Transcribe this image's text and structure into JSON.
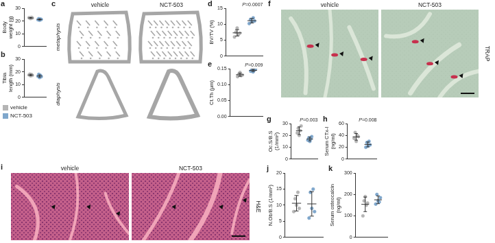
{
  "chart_data": [
    {
      "panel": "a",
      "type": "dot",
      "y_label": "Body weight (g)",
      "ylim": [
        0,
        30
      ],
      "yticks": [
        0,
        10,
        20,
        30
      ],
      "grid": false,
      "tick_labels": "y",
      "series": [
        {
          "name": "vehicle",
          "color": "#b5b5b5",
          "points": [
            22.6,
            22.2,
            21.9,
            22.8,
            22.4
          ],
          "mean": 22.4,
          "sd": 0.35
        },
        {
          "name": "NCT-503",
          "color": "#7fa7cc",
          "points": [
            21.0,
            21.8,
            20.6,
            21.5,
            21.2
          ],
          "mean": 21.2,
          "sd": 0.45
        }
      ]
    },
    {
      "panel": "b",
      "type": "dot",
      "y_label": "Tibia length (mm)",
      "ylim": [
        0,
        30
      ],
      "yticks": [
        0,
        10,
        20,
        30
      ],
      "grid": false,
      "tick_labels": "y",
      "series": [
        {
          "name": "vehicle",
          "color": "#b5b5b5",
          "points": [
            17.5,
            18.2,
            16.8,
            17.9,
            17.2
          ],
          "mean": 17.5,
          "sd": 0.55
        },
        {
          "name": "NCT-503",
          "color": "#7fa7cc",
          "points": [
            16.5,
            18.0,
            15.5,
            17.2,
            16.2
          ],
          "mean": 16.7,
          "sd": 0.95
        }
      ]
    },
    {
      "panel": "d",
      "type": "dot",
      "y_label": "BV/TV (%)",
      "ylim": [
        0,
        15
      ],
      "yticks": [
        0,
        5,
        10,
        15
      ],
      "grid": false,
      "tick_labels": "y",
      "annotation": "P=0.0007",
      "series": [
        {
          "name": "vehicle",
          "color": "#b5b5b5",
          "points": [
            6.0,
            7.5,
            8.8,
            6.8,
            7.2
          ],
          "mean": 7.3,
          "sd": 1.0
        },
        {
          "name": "NCT-503",
          "color": "#7fa7cc",
          "points": [
            10.2,
            11.5,
            10.8,
            12.0,
            11.0
          ],
          "mean": 11.1,
          "sd": 0.7
        }
      ]
    },
    {
      "panel": "e",
      "type": "dot",
      "y_label": "Ct.Th (µm)",
      "ylim": [
        0,
        0.15
      ],
      "yticks": [
        {
          "value": 0,
          "label": "0.00"
        },
        {
          "value": 0.05,
          "label": "0.05"
        },
        {
          "value": 0.1,
          "label": "0.10"
        },
        {
          "value": 0.15,
          "label": "0.15"
        }
      ],
      "grid": false,
      "tick_labels": "y",
      "annotation": "P=0.009",
      "series": [
        {
          "name": "vehicle",
          "color": "#b5b5b5",
          "points": [
            0.125,
            0.132,
            0.138,
            0.128,
            0.13
          ],
          "mean": 0.131,
          "sd": 0.005
        },
        {
          "name": "NCT-503",
          "color": "#7fa7cc",
          "points": [
            0.142,
            0.147,
            0.14,
            0.145,
            0.149
          ],
          "mean": 0.1446,
          "sd": 0.0036
        }
      ]
    },
    {
      "panel": "g",
      "type": "dot",
      "y_label": "Oc.S/B.S (1/mm²)",
      "ylim": [
        0,
        30
      ],
      "yticks": [
        0,
        10,
        20,
        30
      ],
      "grid": false,
      "tick_labels": "y",
      "annotation": "P=0.003",
      "series": [
        {
          "name": "vehicle",
          "color": "#b5b5b5",
          "points": [
            22,
            26,
            20,
            24,
            28
          ],
          "mean": 24,
          "sd": 3.2
        },
        {
          "name": "NCT-503",
          "color": "#7fa7cc",
          "points": [
            16,
            18,
            15,
            17,
            19
          ],
          "mean": 17,
          "sd": 1.6
        }
      ]
    },
    {
      "panel": "h",
      "type": "dot",
      "y_label": "Serum CTx-I (ng/ml)",
      "ylim": [
        0,
        60
      ],
      "yticks": [
        0,
        20,
        40,
        60
      ],
      "grid": false,
      "tick_labels": "y",
      "annotation": "P=0.008",
      "series": [
        {
          "name": "vehicle",
          "color": "#b5b5b5",
          "points": [
            35,
            45,
            30,
            40,
            38
          ],
          "mean": 37.6,
          "sd": 5.6
        },
        {
          "name": "NCT-503",
          "color": "#7fa7cc",
          "points": [
            20,
            28,
            22,
            30,
            24
          ],
          "mean": 24.8,
          "sd": 4.1
        }
      ]
    },
    {
      "panel": "j",
      "type": "dot",
      "y_label": "N.Ob/B.S (1/mm²)",
      "ylim": [
        0,
        20
      ],
      "yticks": [
        0,
        5,
        10,
        15,
        20
      ],
      "grid": false,
      "tick_labels": "y",
      "series": [
        {
          "name": "vehicle",
          "color": "#b5b5b5",
          "points": [
            8,
            12,
            10,
            14,
            9
          ],
          "mean": 10.6,
          "sd": 2.4
        },
        {
          "name": "NCT-503",
          "color": "#7fa7cc",
          "points": [
            6,
            14,
            9,
            15,
            8
          ],
          "mean": 10.4,
          "sd": 3.8
        }
      ]
    },
    {
      "panel": "k",
      "type": "dot",
      "y_label": "Serum osteocalcin (ng/ml)",
      "ylim": [
        0,
        300
      ],
      "yticks": [
        0,
        100,
        200,
        300
      ],
      "grid": false,
      "tick_labels": "y",
      "series": [
        {
          "name": "vehicle",
          "color": "#b5b5b5",
          "points": [
            100,
            170,
            190,
            150,
            160
          ],
          "mean": 154,
          "sd": 34
        },
        {
          "name": "NCT-503",
          "color": "#7fa7cc",
          "points": [
            155,
            200,
            170,
            165,
            185
          ],
          "mean": 175,
          "sd": 18
        }
      ]
    }
  ],
  "images": [
    {
      "panel": "c",
      "columns": [
        "vehicle",
        "NCT-503"
      ],
      "rows": [
        "metaphysis",
        "diaphysis"
      ]
    },
    {
      "panel": "f",
      "columns": [
        "vehicle",
        "NCT-503"
      ],
      "stain": "TRAP"
    },
    {
      "panel": "i",
      "columns": [
        "vehicle",
        "NCT-503"
      ],
      "stain": "H&E"
    }
  ]
}
